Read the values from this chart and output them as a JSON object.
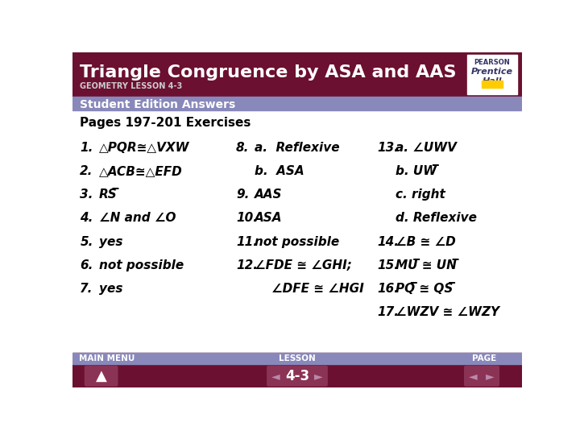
{
  "title": "Triangle Congruence by ASA and AAS",
  "subtitle": "GEOMETRY LESSON 4-3",
  "banner_color": "#6B1030",
  "banner_text_color": "#FFFFFF",
  "subtitle_color": "#CCCCCC",
  "subheader": "Student Edition Answers",
  "subheader_bg": "#8888BB",
  "subheader_text_color": "#FFFFFF",
  "page_header": "Pages 197-201 Exercises",
  "bg_color": "#FFFFFF",
  "footer_bg": "#6B1030",
  "footer_label_bg": "#8888BB",
  "footer_btn_bg": "#8B3355",
  "content_color": "#000000",
  "lesson_num": "4-3",
  "col1": [
    [
      "1.",
      "△PQR≅△VXW"
    ],
    [
      "2.",
      "△ACB≅△EFD"
    ],
    [
      "3.",
      "RS̅"
    ],
    [
      "4.",
      "∠N and ∠O"
    ],
    [
      "5.",
      "yes"
    ],
    [
      "6.",
      "not possible"
    ],
    [
      "7.",
      "yes"
    ]
  ],
  "col2_rows": [
    [
      0,
      "8.",
      "a.  Reflexive"
    ],
    [
      1,
      "",
      "b.  ASA"
    ],
    [
      2,
      "9.",
      "AAS"
    ],
    [
      3,
      "10.",
      "ASA"
    ],
    [
      4,
      "11.",
      "not possible"
    ],
    [
      5,
      "12.",
      "∠FDE ≅ ∠GHI;"
    ],
    [
      6,
      "",
      "    ∠DFE ≅ ∠HGI"
    ]
  ],
  "col3_rows": [
    [
      0,
      "13.",
      "a. ∠UWV"
    ],
    [
      1,
      "",
      "b. UW̅"
    ],
    [
      2,
      "",
      "c. right"
    ],
    [
      3,
      "",
      "d. Reflexive"
    ],
    [
      4,
      "14.",
      "∠B ≅ ∠D"
    ],
    [
      5,
      "15.",
      "MU̅ ≅ UN̅"
    ],
    [
      6,
      "16.",
      "PQ̅ ≅ QS̅"
    ],
    [
      7,
      "17.",
      "∠WZV ≅ ∠WZY"
    ]
  ]
}
